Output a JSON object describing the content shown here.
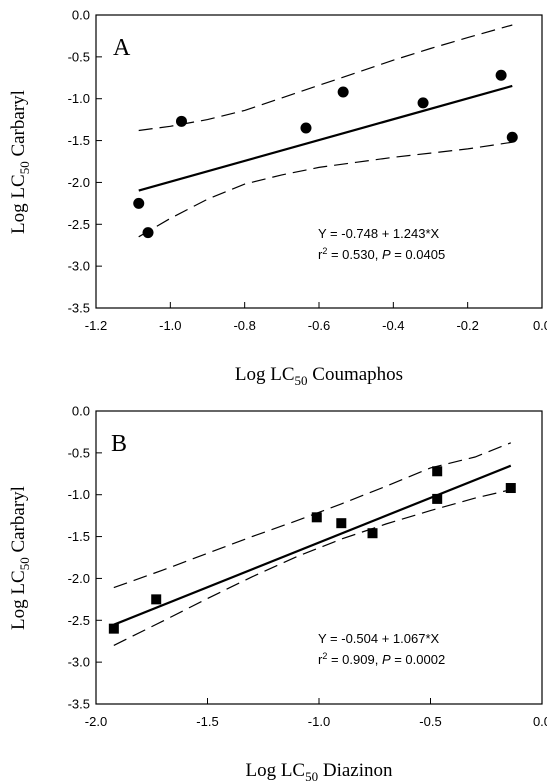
{
  "chart_data": [
    {
      "type": "scatter",
      "panel_label": "A",
      "xlabel": {
        "prefix": "Log LC",
        "sub": "50",
        "suffix": " Coumaphos"
      },
      "ylabel": {
        "prefix": "Log LC",
        "sub": "50",
        "suffix": " Carbaryl"
      },
      "xlim": [
        -1.2,
        0.0
      ],
      "ylim": [
        -3.5,
        0.0
      ],
      "xticks": [
        -1.2,
        -1.0,
        -0.8,
        -0.6,
        -0.4,
        -0.2,
        0.0
      ],
      "xtick_labels": [
        "-1.2",
        "-1.0",
        "-0.8",
        "-0.6",
        "-0.4",
        "-0.2",
        "0.0"
      ],
      "yticks": [
        0.0,
        -0.5,
        -1.0,
        -1.5,
        -2.0,
        -2.5,
        -3.0,
        -3.5
      ],
      "ytick_labels": [
        "0.0",
        "-0.5",
        "-1.0",
        "-1.5",
        "-2.0",
        "-2.5",
        "-3.0",
        "-3.5"
      ],
      "marker": "circle",
      "points": [
        {
          "x": -1.085,
          "y": -2.25
        },
        {
          "x": -1.06,
          "y": -2.6
        },
        {
          "x": -0.97,
          "y": -1.27
        },
        {
          "x": -0.635,
          "y": -1.35
        },
        {
          "x": -0.535,
          "y": -0.92
        },
        {
          "x": -0.32,
          "y": -1.05
        },
        {
          "x": -0.11,
          "y": -0.72
        },
        {
          "x": -0.08,
          "y": -1.46
        }
      ],
      "fit": {
        "intercept": -0.748,
        "slope": 1.243,
        "x_range": [
          -1.085,
          -0.08
        ]
      },
      "ci_upper": [
        {
          "x": -1.085,
          "y": -1.38
        },
        {
          "x": -1.0,
          "y": -1.33
        },
        {
          "x": -0.9,
          "y": -1.25
        },
        {
          "x": -0.8,
          "y": -1.14
        },
        {
          "x": -0.7,
          "y": -0.99
        },
        {
          "x": -0.6,
          "y": -0.84
        },
        {
          "x": -0.5,
          "y": -0.69
        },
        {
          "x": -0.4,
          "y": -0.54
        },
        {
          "x": -0.3,
          "y": -0.4
        },
        {
          "x": -0.2,
          "y": -0.27
        },
        {
          "x": -0.08,
          "y": -0.12
        }
      ],
      "ci_lower": [
        {
          "x": -1.085,
          "y": -2.65
        },
        {
          "x": -1.0,
          "y": -2.43
        },
        {
          "x": -0.9,
          "y": -2.2
        },
        {
          "x": -0.8,
          "y": -2.02
        },
        {
          "x": -0.7,
          "y": -1.91
        },
        {
          "x": -0.6,
          "y": -1.82
        },
        {
          "x": -0.5,
          "y": -1.76
        },
        {
          "x": -0.4,
          "y": -1.7
        },
        {
          "x": -0.3,
          "y": -1.65
        },
        {
          "x": -0.2,
          "y": -1.6
        },
        {
          "x": -0.08,
          "y": -1.52
        }
      ],
      "equation": "Y = -0.748 + 1.243*X",
      "stats": {
        "r2_label": "r",
        "r2_sup": "2",
        "r2_value": " = 0.530, ",
        "p_label": "P",
        "p_value": " = 0.0405"
      }
    },
    {
      "type": "scatter",
      "panel_label": "B",
      "xlabel": {
        "prefix": "Log LC",
        "sub": "50",
        "suffix": " Diazinon"
      },
      "ylabel": {
        "prefix": "Log LC",
        "sub": "50",
        "suffix": " Carbaryl"
      },
      "xlim": [
        -2.0,
        0.0
      ],
      "ylim": [
        -3.5,
        0.0
      ],
      "xticks": [
        -2.0,
        -1.5,
        -1.0,
        -0.5,
        0.0
      ],
      "xtick_labels": [
        "-2.0",
        "-1.5",
        "-1.0",
        "-0.5",
        "0.0"
      ],
      "yticks": [
        0.0,
        -0.5,
        -1.0,
        -1.5,
        -2.0,
        -2.5,
        -3.0,
        -3.5
      ],
      "ytick_labels": [
        "0.0",
        "-0.5",
        "-1.0",
        "-1.5",
        "-2.0",
        "-2.5",
        "-3.0",
        "-3.5"
      ],
      "marker": "square",
      "points": [
        {
          "x": -1.92,
          "y": -2.6
        },
        {
          "x": -1.73,
          "y": -2.25
        },
        {
          "x": -1.01,
          "y": -1.27
        },
        {
          "x": -0.9,
          "y": -1.34
        },
        {
          "x": -0.76,
          "y": -1.46
        },
        {
          "x": -0.47,
          "y": -0.72
        },
        {
          "x": -0.47,
          "y": -1.05
        },
        {
          "x": -0.14,
          "y": -0.92
        }
      ],
      "fit": {
        "intercept": -0.504,
        "slope": 1.067,
        "x_range": [
          -1.92,
          -0.14
        ]
      },
      "ci_upper": [
        {
          "x": -1.92,
          "y": -2.11
        },
        {
          "x": -1.7,
          "y": -1.9
        },
        {
          "x": -1.5,
          "y": -1.7
        },
        {
          "x": -1.3,
          "y": -1.5
        },
        {
          "x": -1.1,
          "y": -1.31
        },
        {
          "x": -0.9,
          "y": -1.11
        },
        {
          "x": -0.7,
          "y": -0.9
        },
        {
          "x": -0.5,
          "y": -0.68
        },
        {
          "x": -0.3,
          "y": -0.55
        },
        {
          "x": -0.14,
          "y": -0.38
        }
      ],
      "ci_lower": [
        {
          "x": -1.92,
          "y": -2.8
        },
        {
          "x": -1.7,
          "y": -2.51
        },
        {
          "x": -1.5,
          "y": -2.24
        },
        {
          "x": -1.3,
          "y": -1.98
        },
        {
          "x": -1.1,
          "y": -1.74
        },
        {
          "x": -0.9,
          "y": -1.53
        },
        {
          "x": -0.7,
          "y": -1.35
        },
        {
          "x": -0.5,
          "y": -1.19
        },
        {
          "x": -0.3,
          "y": -1.04
        },
        {
          "x": -0.14,
          "y": -0.94
        }
      ],
      "equation": "Y = -0.504 + 1.067*X",
      "stats": {
        "r2_label": "r",
        "r2_sup": "2",
        "r2_value": " = 0.909, ",
        "p_label": "P",
        "p_value": " = 0.0002"
      }
    }
  ]
}
